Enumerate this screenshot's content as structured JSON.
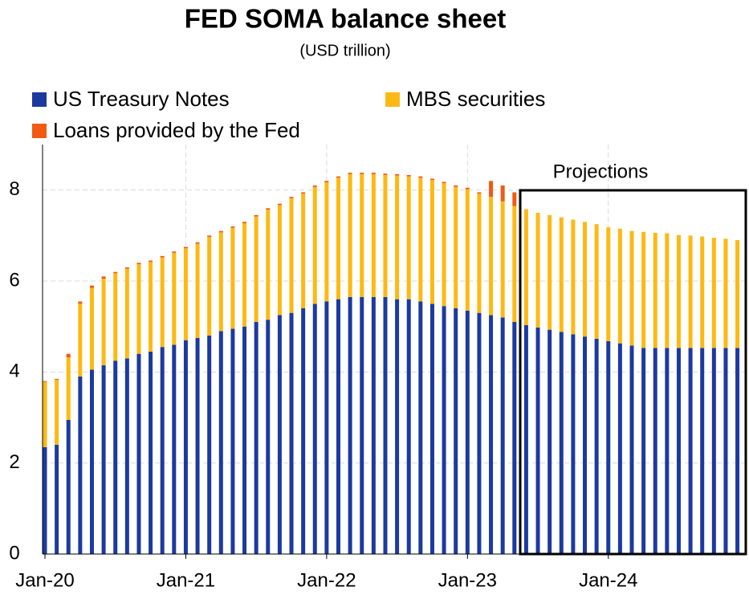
{
  "chart_data": {
    "type": "stacked_bar",
    "title": "FED SOMA balance sheet",
    "subtitle": "(USD trillion)",
    "annotation": "Projections",
    "categories": [
      "Jan-20",
      null,
      null,
      null,
      null,
      null,
      null,
      null,
      null,
      null,
      null,
      null,
      "Jan-21",
      null,
      null,
      null,
      null,
      null,
      null,
      null,
      null,
      null,
      null,
      null,
      "Jan-22",
      null,
      null,
      null,
      null,
      null,
      null,
      null,
      null,
      null,
      null,
      null,
      "Jan-23",
      null,
      null,
      null,
      null,
      null,
      null,
      null,
      null,
      null,
      null,
      null,
      "Jan-24",
      null,
      null,
      null,
      null,
      null,
      null,
      null,
      null,
      null,
      null,
      null
    ],
    "series": [
      {
        "name": "US Treasury Notes",
        "color": "#1c3a9e",
        "values": [
          2.35,
          2.4,
          2.95,
          3.9,
          4.05,
          4.15,
          4.25,
          4.3,
          4.4,
          4.45,
          4.55,
          4.6,
          4.7,
          4.75,
          4.8,
          4.9,
          4.95,
          5.0,
          5.1,
          5.15,
          5.25,
          5.3,
          5.4,
          5.5,
          5.55,
          5.6,
          5.65,
          5.65,
          5.65,
          5.65,
          5.6,
          5.6,
          5.55,
          5.5,
          5.45,
          5.4,
          5.35,
          5.3,
          5.25,
          5.2,
          5.1,
          5.03,
          4.98,
          4.93,
          4.88,
          4.83,
          4.78,
          4.73,
          4.68,
          4.63,
          4.58,
          4.53,
          4.53,
          4.53,
          4.53,
          4.53,
          4.53,
          4.53,
          4.53,
          4.53
        ]
      },
      {
        "name": "MBS securities",
        "color": "#fdb913",
        "values": [
          1.43,
          1.43,
          1.37,
          1.6,
          1.8,
          1.9,
          1.92,
          1.97,
          1.97,
          1.97,
          1.97,
          2.02,
          2.02,
          2.07,
          2.17,
          2.17,
          2.22,
          2.27,
          2.32,
          2.42,
          2.42,
          2.52,
          2.52,
          2.57,
          2.62,
          2.67,
          2.7,
          2.7,
          2.7,
          2.68,
          2.72,
          2.7,
          2.72,
          2.72,
          2.7,
          2.67,
          2.67,
          2.62,
          2.6,
          2.55,
          2.55,
          2.55,
          2.52,
          2.52,
          2.52,
          2.52,
          2.52,
          2.52,
          2.5,
          2.52,
          2.52,
          2.55,
          2.53,
          2.52,
          2.48,
          2.47,
          2.45,
          2.42,
          2.4,
          2.37
        ]
      },
      {
        "name": "Loans provided by the Fed",
        "color": "#f05a13",
        "values": [
          0.02,
          0.02,
          0.08,
          0.05,
          0.05,
          0.05,
          0.03,
          0.03,
          0.03,
          0.03,
          0.03,
          0.03,
          0.03,
          0.03,
          0.03,
          0.03,
          0.03,
          0.03,
          0.03,
          0.03,
          0.03,
          0.03,
          0.03,
          0.03,
          0.03,
          0.03,
          0.03,
          0.03,
          0.03,
          0.03,
          0.03,
          0.03,
          0.03,
          0.03,
          0.03,
          0.03,
          0.03,
          0.03,
          0.35,
          0.35,
          0.3,
          0,
          0,
          0,
          0,
          0,
          0,
          0,
          0,
          0,
          0,
          0,
          0,
          0,
          0,
          0,
          0,
          0,
          0,
          0
        ]
      }
    ],
    "ylim": [
      0,
      9
    ],
    "yticks": [
      0,
      2,
      4,
      6,
      8
    ],
    "grid": true,
    "title_color": "#1f3c99"
  }
}
